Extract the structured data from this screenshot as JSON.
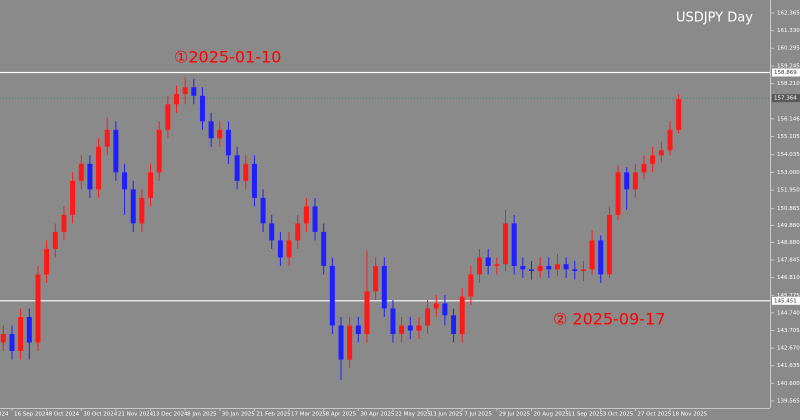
{
  "chart_data": {
    "type": "candlestick",
    "title": "USDJPY  Day",
    "background": "#8a8a8a",
    "up_color": "#ff1a1a",
    "down_color": "#2020ff",
    "categories": [
      "024",
      null,
      null,
      null,
      "16 Sep 2024",
      null,
      null,
      null,
      "8 Oct 2024",
      null,
      null,
      null,
      "30 Oct 2024",
      null,
      null,
      null,
      "21 Nov 2024",
      null,
      null,
      null,
      "13 Dec 2024",
      null,
      null,
      null,
      "8 Jan 2025",
      null,
      null,
      null,
      "30 Jan 2025",
      null,
      null,
      null,
      "21 Feb 2025",
      null,
      null,
      null,
      "17 Mar 2025",
      null,
      null,
      null,
      "8 Apr 2025",
      null,
      null,
      null,
      "30 Apr 2025",
      null,
      null,
      null,
      "22 May 2025",
      null,
      null,
      null,
      "13 Jun 2025",
      null,
      null,
      null,
      "7 Jul 2025",
      null,
      null,
      null,
      "29 Jul 2025",
      null,
      null,
      null,
      "20 Aug 2025",
      null,
      null,
      null,
      "11 Sep 2025",
      null,
      null,
      null,
      "3 Oct 2025",
      null,
      null,
      null,
      "27 Oct 2025",
      null,
      null,
      null,
      "18 Nov 2025",
      null
    ],
    "open": [
      null,
      null,
      null,
      143,
      143.5,
      142.5,
      144.5,
      143,
      147,
      148.5,
      149.5,
      150.5,
      152.5,
      153.5,
      152,
      154.5,
      155.5,
      153,
      152,
      150,
      151.5,
      153,
      155.5,
      157,
      157.6,
      158,
      157.5,
      156,
      155,
      155.5,
      154,
      152.5,
      153.5,
      151.5,
      150,
      149,
      148,
      149,
      150,
      151,
      149.5,
      147.5,
      144,
      142,
      144,
      143.5,
      146,
      147.5,
      145,
      143.5,
      144,
      143.7,
      144,
      145,
      145.3,
      144.6,
      143.5,
      145.7,
      147,
      148,
      147.5,
      147.6,
      150,
      147.5,
      147.3,
      147.2,
      147.5,
      147.3,
      147.6,
      147.3,
      147.2,
      147.3,
      149,
      147,
      150.5,
      153,
      152,
      153,
      153.5,
      154,
      154.3,
      155.5
    ],
    "high": [
      null,
      null,
      null,
      144,
      144,
      145,
      145,
      147.5,
      149,
      150,
      151,
      153,
      154,
      154,
      155,
      156.2,
      156,
      153.5,
      152.5,
      152,
      153.5,
      156,
      157.5,
      158.1,
      158.6,
      158.5,
      158,
      156.5,
      156,
      156,
      154.5,
      154,
      154,
      152,
      150.5,
      149.5,
      149.5,
      150.5,
      151.5,
      151.5,
      150,
      148,
      144.5,
      144.5,
      144.5,
      148.4,
      148,
      148,
      145.5,
      144.5,
      144.5,
      144.5,
      145.5,
      145.8,
      145.8,
      145,
      146.2,
      147.5,
      148.5,
      148.5,
      148,
      150.8,
      150.5,
      148,
      147.8,
      148,
      148,
      148.2,
      148,
      147.8,
      147.8,
      149.6,
      149.3,
      151,
      153.4,
      153.3,
      153.5,
      154,
      154.5,
      154.8,
      156,
      157.6
    ],
    "low": [
      null,
      null,
      null,
      142.5,
      142,
      142,
      142,
      142.5,
      146.5,
      148,
      149,
      150,
      152,
      151.5,
      151.5,
      154,
      152.5,
      150.5,
      149.5,
      149.5,
      151,
      152.5,
      155,
      156.5,
      157,
      157,
      155.5,
      154.5,
      154.5,
      153.5,
      152,
      152,
      151,
      149.5,
      148.5,
      147.5,
      147.5,
      148.5,
      149.5,
      149,
      147,
      143.5,
      140.8,
      141.5,
      143,
      143,
      145.5,
      144.5,
      143,
      143,
      143.2,
      143.2,
      143.5,
      144.5,
      144,
      143,
      143,
      145.2,
      146.5,
      147,
      147,
      147.2,
      147,
      146.8,
      146.7,
      146.8,
      146.8,
      146.9,
      146.8,
      146.7,
      146.6,
      147,
      146.5,
      146.8,
      150.2,
      150.8,
      151.5,
      152.6,
      153,
      153.6,
      154,
      155.3
    ],
    "close": [
      null,
      null,
      null,
      143.5,
      142.5,
      144.5,
      143,
      147,
      148.5,
      149.5,
      150.5,
      152.5,
      153.5,
      152,
      154.5,
      155.5,
      153,
      152,
      150,
      151.5,
      153,
      155.5,
      157,
      157.6,
      158,
      157.5,
      156,
      155,
      155.5,
      154,
      152.5,
      153.5,
      151.5,
      150,
      149,
      148,
      149,
      150,
      151,
      149.5,
      147.5,
      144,
      142,
      144,
      143.5,
      146,
      147.5,
      145,
      143.5,
      144,
      143.7,
      144,
      145,
      145.3,
      144.6,
      143.5,
      145.7,
      147,
      148,
      147.5,
      147.6,
      150,
      147.5,
      147.3,
      147.2,
      147.5,
      147.3,
      147.6,
      147.3,
      147.2,
      147.3,
      149,
      147,
      150.5,
      153,
      152,
      153,
      153.5,
      154,
      154.3,
      155.5,
      157.3
    ],
    "ylim": [
      139.15,
      163.13
    ],
    "yticks": [
      162.365,
      {
        "value": 161.33,
        "label": "161.330"
      },
      160.295,
      159.245,
      {
        "value": 158.21,
        "label": "158.210"
      },
      156.146,
      155.105,
      154.035,
      {
        "value": 153,
        "label": "153.000"
      },
      {
        "value": 151.95,
        "label": "151.950"
      },
      150.865,
      {
        "value": 149.88,
        "label": "149.880"
      },
      {
        "value": 148.88,
        "label": "148.880"
      },
      147.845,
      {
        "value": 146.81,
        "label": "146.810"
      },
      145.775,
      {
        "value": 144.74,
        "label": "144.740"
      },
      143.705,
      {
        "value": 142.67,
        "label": "142.670"
      },
      141.635,
      {
        "value": 140.6,
        "label": "140.600"
      },
      139.565
    ],
    "hlines": [
      {
        "value": 158.869,
        "label": "158.869"
      },
      {
        "value": 145.451,
        "label": "145.451"
      }
    ],
    "current_price": {
      "value": 157.364,
      "label": "157.364"
    },
    "annotations": [
      "①2025-01-10",
      "② 2025-09-17"
    ],
    "annotation_color": "#ff0000"
  }
}
